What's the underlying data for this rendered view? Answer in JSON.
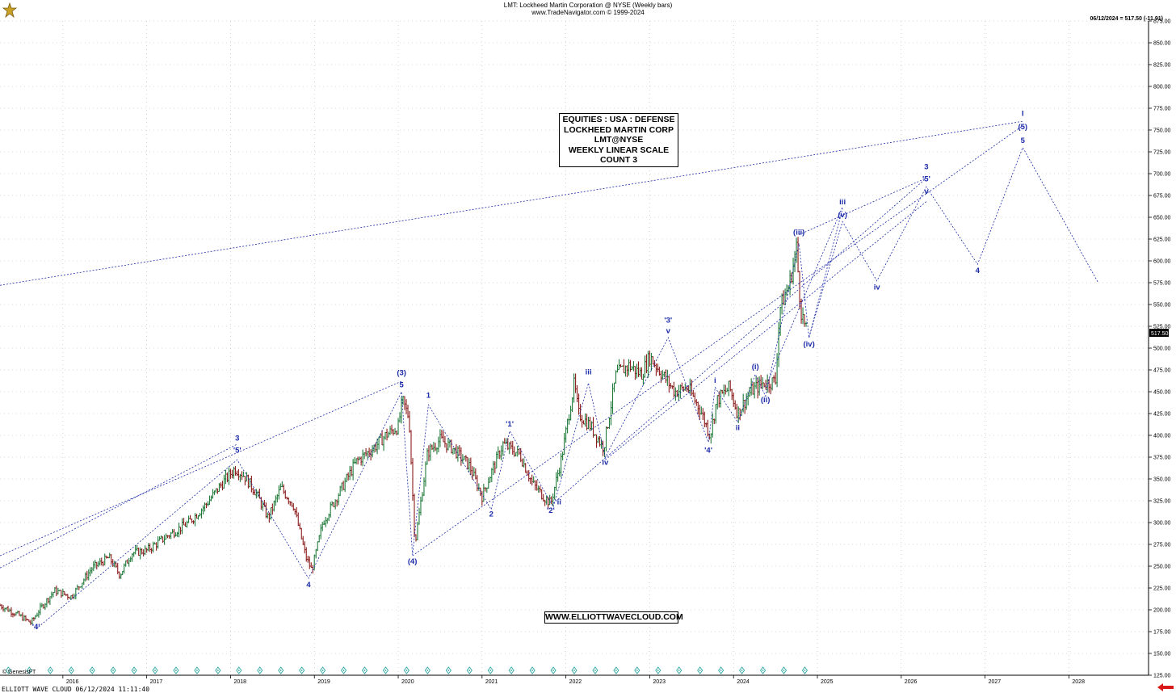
{
  "header": {
    "title": "LMT:  Lockheed Martin Corporation @ NYSE  (Weekly bars)",
    "copyright": "www.TradeNavigator.com © 1999-2024"
  },
  "last_quote": "06/12/2024 = 517.50 (-11.91)",
  "price_tag": "517.50",
  "info_box": [
    "EQUITIES : USA : DEFENSE",
    "LOCKHEED MARTIN CORP",
    "LMT@NYSE",
    "WEEKLY LINEAR SCALE",
    "COUNT 3"
  ],
  "website": "WWW.ELLIOTTWAVECLOUD.COM",
  "footer": "ELLIOTT WAVE CLOUD   06/12/2024 11:11:40",
  "genesis_label": "© GenesisFT",
  "colors": {
    "wave": "#1a2aa8",
    "up_bar": "#1f7a3a",
    "down_bar": "#8b1a1a",
    "grid": "#b8b8b8",
    "cycle_icon": "#2aa6a0",
    "arrow": "#d91a1a"
  },
  "chart_data": {
    "type": "line",
    "title": "LMT:  Lockheed Martin Corporation @ NYSE  (Weekly bars)",
    "x_labels": [
      "2016",
      "2017",
      "2018",
      "2019",
      "2020",
      "2021",
      "2022",
      "2023",
      "2024",
      "2025",
      "2026",
      "2027",
      "2028"
    ],
    "ylim": [
      125,
      875
    ],
    "y_ticks": [
      125,
      150,
      175,
      200,
      225,
      250,
      275,
      300,
      325,
      350,
      375,
      400,
      425,
      450,
      475,
      500,
      525,
      550,
      575,
      600,
      625,
      650,
      675,
      700,
      725,
      750,
      775,
      800,
      825,
      850,
      875
    ],
    "grid": true,
    "price_series": {
      "name": "LMT weekly",
      "x": [
        2015.25,
        2015.45,
        2015.62,
        2015.72,
        2015.9,
        2016.1,
        2016.35,
        2016.55,
        2016.68,
        2016.82,
        2017.0,
        2017.25,
        2017.5,
        2017.7,
        2017.9,
        2018.05,
        2018.15,
        2018.3,
        2018.45,
        2018.6,
        2018.75,
        2018.9,
        2018.97,
        2019.1,
        2019.3,
        2019.5,
        2019.7,
        2019.85,
        2020.0,
        2020.05,
        2020.13,
        2020.2,
        2020.35,
        2020.5,
        2020.65,
        2020.85,
        2021.0,
        2021.1,
        2021.25,
        2021.45,
        2021.6,
        2021.75,
        2021.82,
        2021.95,
        2022.1,
        2022.15,
        2022.3,
        2022.45,
        2022.6,
        2022.75,
        2022.9,
        2023.0,
        2023.15,
        2023.3,
        2023.45,
        2023.6,
        2023.72,
        2023.8,
        2023.95,
        2024.05,
        2024.2,
        2024.35,
        2024.5,
        2024.55,
        2024.67,
        2024.75,
        2024.8,
        2024.87
      ],
      "values": [
        205,
        195,
        185,
        200,
        222,
        215,
        248,
        260,
        240,
        265,
        268,
        285,
        300,
        320,
        345,
        362,
        355,
        335,
        305,
        340,
        320,
        260,
        245,
        300,
        335,
        370,
        385,
        400,
        410,
        440,
        420,
        275,
        380,
        395,
        385,
        365,
        330,
        355,
        390,
        378,
        345,
        328,
        322,
        375,
        460,
        425,
        410,
        385,
        470,
        480,
        470,
        490,
        470,
        450,
        455,
        430,
        400,
        440,
        455,
        425,
        450,
        460,
        462,
        545,
        575,
        615,
        545,
        517.5
      ]
    },
    "wave_labels": [
      {
        "text": "'4'",
        "x": 2015.68,
        "y": 178
      },
      {
        "text": "3",
        "x": 2018.08,
        "y": 394
      },
      {
        "text": "'5'",
        "x": 2018.08,
        "y": 380
      },
      {
        "text": "4",
        "x": 2018.93,
        "y": 226
      },
      {
        "text": "(3)",
        "x": 2020.04,
        "y": 469
      },
      {
        "text": "5",
        "x": 2020.04,
        "y": 455
      },
      {
        "text": "(4)",
        "x": 2020.17,
        "y": 253
      },
      {
        "text": "1",
        "x": 2020.36,
        "y": 443
      },
      {
        "text": "2",
        "x": 2021.11,
        "y": 307
      },
      {
        "text": "'1'",
        "x": 2021.33,
        "y": 410
      },
      {
        "text": "'2'",
        "x": 2021.82,
        "y": 311
      },
      {
        "text": "ii",
        "x": 2021.92,
        "y": 321
      },
      {
        "text": "iii",
        "x": 2022.27,
        "y": 470
      },
      {
        "text": "iv",
        "x": 2022.47,
        "y": 366
      },
      {
        "text": "'3'",
        "x": 2023.22,
        "y": 529
      },
      {
        "text": "v",
        "x": 2023.22,
        "y": 517
      },
      {
        "text": "'4'",
        "x": 2023.7,
        "y": 380
      },
      {
        "text": "i",
        "x": 2023.78,
        "y": 460
      },
      {
        "text": "ii",
        "x": 2024.05,
        "y": 406
      },
      {
        "text": "(i)",
        "x": 2024.26,
        "y": 476
      },
      {
        "text": "(ii)",
        "x": 2024.38,
        "y": 438
      },
      {
        "text": "(iii)",
        "x": 2024.78,
        "y": 630
      },
      {
        "text": "(iv)",
        "x": 2024.9,
        "y": 502
      },
      {
        "text": "iii",
        "x": 2025.3,
        "y": 665
      },
      {
        "text": "(v)",
        "x": 2025.3,
        "y": 650
      },
      {
        "text": "iv",
        "x": 2025.71,
        "y": 567
      },
      {
        "text": "3",
        "x": 2026.3,
        "y": 705
      },
      {
        "text": "'5'",
        "x": 2026.3,
        "y": 691
      },
      {
        "text": "v",
        "x": 2026.3,
        "y": 677
      },
      {
        "text": "4",
        "x": 2026.91,
        "y": 586
      },
      {
        "text": "I",
        "x": 2027.45,
        "y": 766
      },
      {
        "text": "(5)",
        "x": 2027.45,
        "y": 751
      },
      {
        "text": "5",
        "x": 2027.45,
        "y": 735
      }
    ],
    "wave_path": {
      "x": [
        2015.68,
        2018.08,
        2018.93,
        2020.04,
        2020.17,
        2020.36,
        2021.11,
        2021.33,
        2021.85,
        2022.27,
        2022.47,
        2023.22,
        2023.7,
        2023.78,
        2024.05,
        2024.26,
        2024.38,
        2024.78,
        2024.9,
        2025.3,
        2025.71,
        2026.3,
        2026.91,
        2027.45,
        2028.35
      ],
      "values": [
        178,
        372,
        236,
        450,
        263,
        435,
        315,
        405,
        318,
        460,
        375,
        512,
        392,
        455,
        415,
        470,
        445,
        620,
        512,
        645,
        577,
        685,
        596,
        730,
        575
      ]
    },
    "channel_lines": [
      {
        "x": [
          2015.25,
          2027.45
        ],
        "values": [
          572,
          760
        ]
      },
      {
        "x": [
          2015.25,
          2020.04
        ],
        "values": [
          262,
          462
        ]
      },
      {
        "x": [
          2015.25,
          2018.08
        ],
        "values": [
          248,
          390
        ]
      },
      {
        "x": [
          2020.17,
          2027.45
        ],
        "values": [
          262,
          755
        ]
      },
      {
        "x": [
          2021.85,
          2026.3
        ],
        "values": [
          322,
          695
        ]
      },
      {
        "x": [
          2022.47,
          2026.3
        ],
        "values": [
          372,
          668
        ]
      },
      {
        "x": [
          2024.78,
          2026.3
        ],
        "values": [
          630,
          695
        ]
      },
      {
        "x": [
          2024.9,
          2025.3
        ],
        "values": [
          512,
          660
        ]
      },
      {
        "x": [
          2024.38,
          2025.3
        ],
        "values": [
          455,
          662
        ]
      }
    ]
  }
}
